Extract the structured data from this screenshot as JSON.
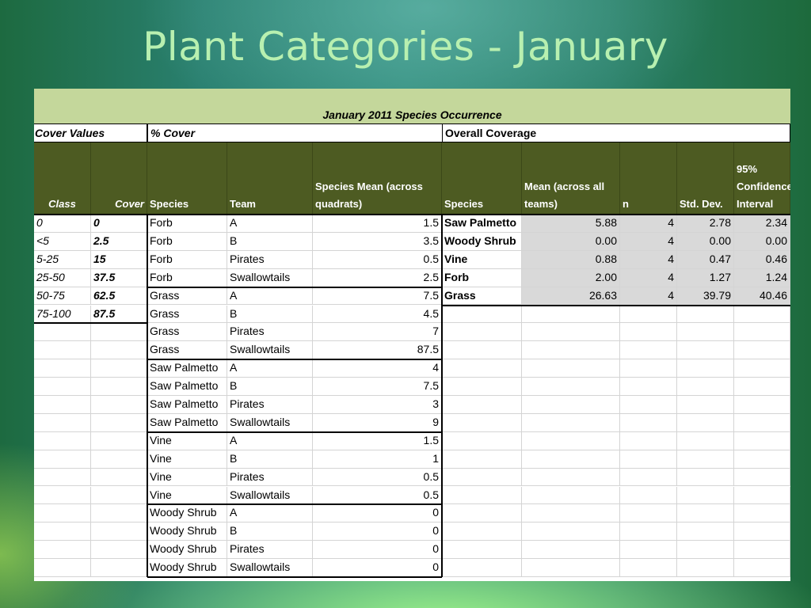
{
  "slide": {
    "title": "Plant Categories - January"
  },
  "sheet": {
    "title": "January 2011 Species Occurrence",
    "groups": {
      "cover_values": "Cover Values",
      "pct_cover": "% Cover",
      "overall": "Overall Coverage"
    },
    "headers": {
      "class": "Class",
      "cover": "Cover",
      "species": "Species",
      "team": "Team",
      "species_mean": "Species Mean (across quadrats)",
      "ov_species": "Species",
      "ov_mean": "Mean (across all teams)",
      "ov_n": "n",
      "ov_std": "Std. Dev.",
      "ov_ci": "95% Confidence Interval"
    },
    "cover_rows": [
      {
        "class": "0",
        "cover": "0"
      },
      {
        "class": "<5",
        "cover": "2.5"
      },
      {
        "class": "5-25",
        "cover": "15"
      },
      {
        "class": "25-50",
        "cover": "37.5"
      },
      {
        "class": "50-75",
        "cover": "62.5"
      },
      {
        "class": "75-100",
        "cover": "87.5"
      }
    ],
    "pct_rows": [
      {
        "species": "Forb",
        "team": "A",
        "mean": "1.5"
      },
      {
        "species": "Forb",
        "team": "B",
        "mean": "3.5"
      },
      {
        "species": "Forb",
        "team": "Pirates",
        "mean": "0.5"
      },
      {
        "species": "Forb",
        "team": "Swallowtails",
        "mean": "2.5"
      },
      {
        "species": "Grass",
        "team": "A",
        "mean": "7.5"
      },
      {
        "species": "Grass",
        "team": "B",
        "mean": "4.5"
      },
      {
        "species": "Grass",
        "team": "Pirates",
        "mean": "7"
      },
      {
        "species": "Grass",
        "team": "Swallowtails",
        "mean": "87.5"
      },
      {
        "species": "Saw Palmetto",
        "team": "A",
        "mean": "4"
      },
      {
        "species": "Saw Palmetto",
        "team": "B",
        "mean": "7.5"
      },
      {
        "species": "Saw Palmetto",
        "team": "Pirates",
        "mean": "3"
      },
      {
        "species": "Saw Palmetto",
        "team": "Swallowtails",
        "mean": "9"
      },
      {
        "species": "Vine",
        "team": "A",
        "mean": "1.5"
      },
      {
        "species": "Vine",
        "team": "B",
        "mean": "1"
      },
      {
        "species": "Vine",
        "team": "Pirates",
        "mean": "0.5"
      },
      {
        "species": "Vine",
        "team": "Swallowtails",
        "mean": "0.5"
      },
      {
        "species": "Woody Shrub",
        "team": "A",
        "mean": "0"
      },
      {
        "species": "Woody Shrub",
        "team": "B",
        "mean": "0"
      },
      {
        "species": "Woody Shrub",
        "team": "Pirates",
        "mean": "0"
      },
      {
        "species": "Woody Shrub",
        "team": "Swallowtails",
        "mean": "0"
      }
    ],
    "overall_rows": [
      {
        "species": "Saw Palmetto",
        "mean": "5.88",
        "n": "4",
        "std": "2.78",
        "ci": "2.34"
      },
      {
        "species": "Woody Shrub",
        "mean": "0.00",
        "n": "4",
        "std": "0.00",
        "ci": "0.00"
      },
      {
        "species": "Vine",
        "mean": "0.88",
        "n": "4",
        "std": "0.47",
        "ci": "0.46"
      },
      {
        "species": "Forb",
        "mean": "2.00",
        "n": "4",
        "std": "1.27",
        "ci": "1.24"
      },
      {
        "species": "Grass",
        "mean": "26.63",
        "n": "4",
        "std": "39.79",
        "ci": "40.46"
      }
    ]
  },
  "colors": {
    "header_olive": "#4d5b22",
    "title_band": "#c4d79b",
    "stats_gray": "#d9d9d9",
    "slide_title": "#b8f0b0"
  }
}
